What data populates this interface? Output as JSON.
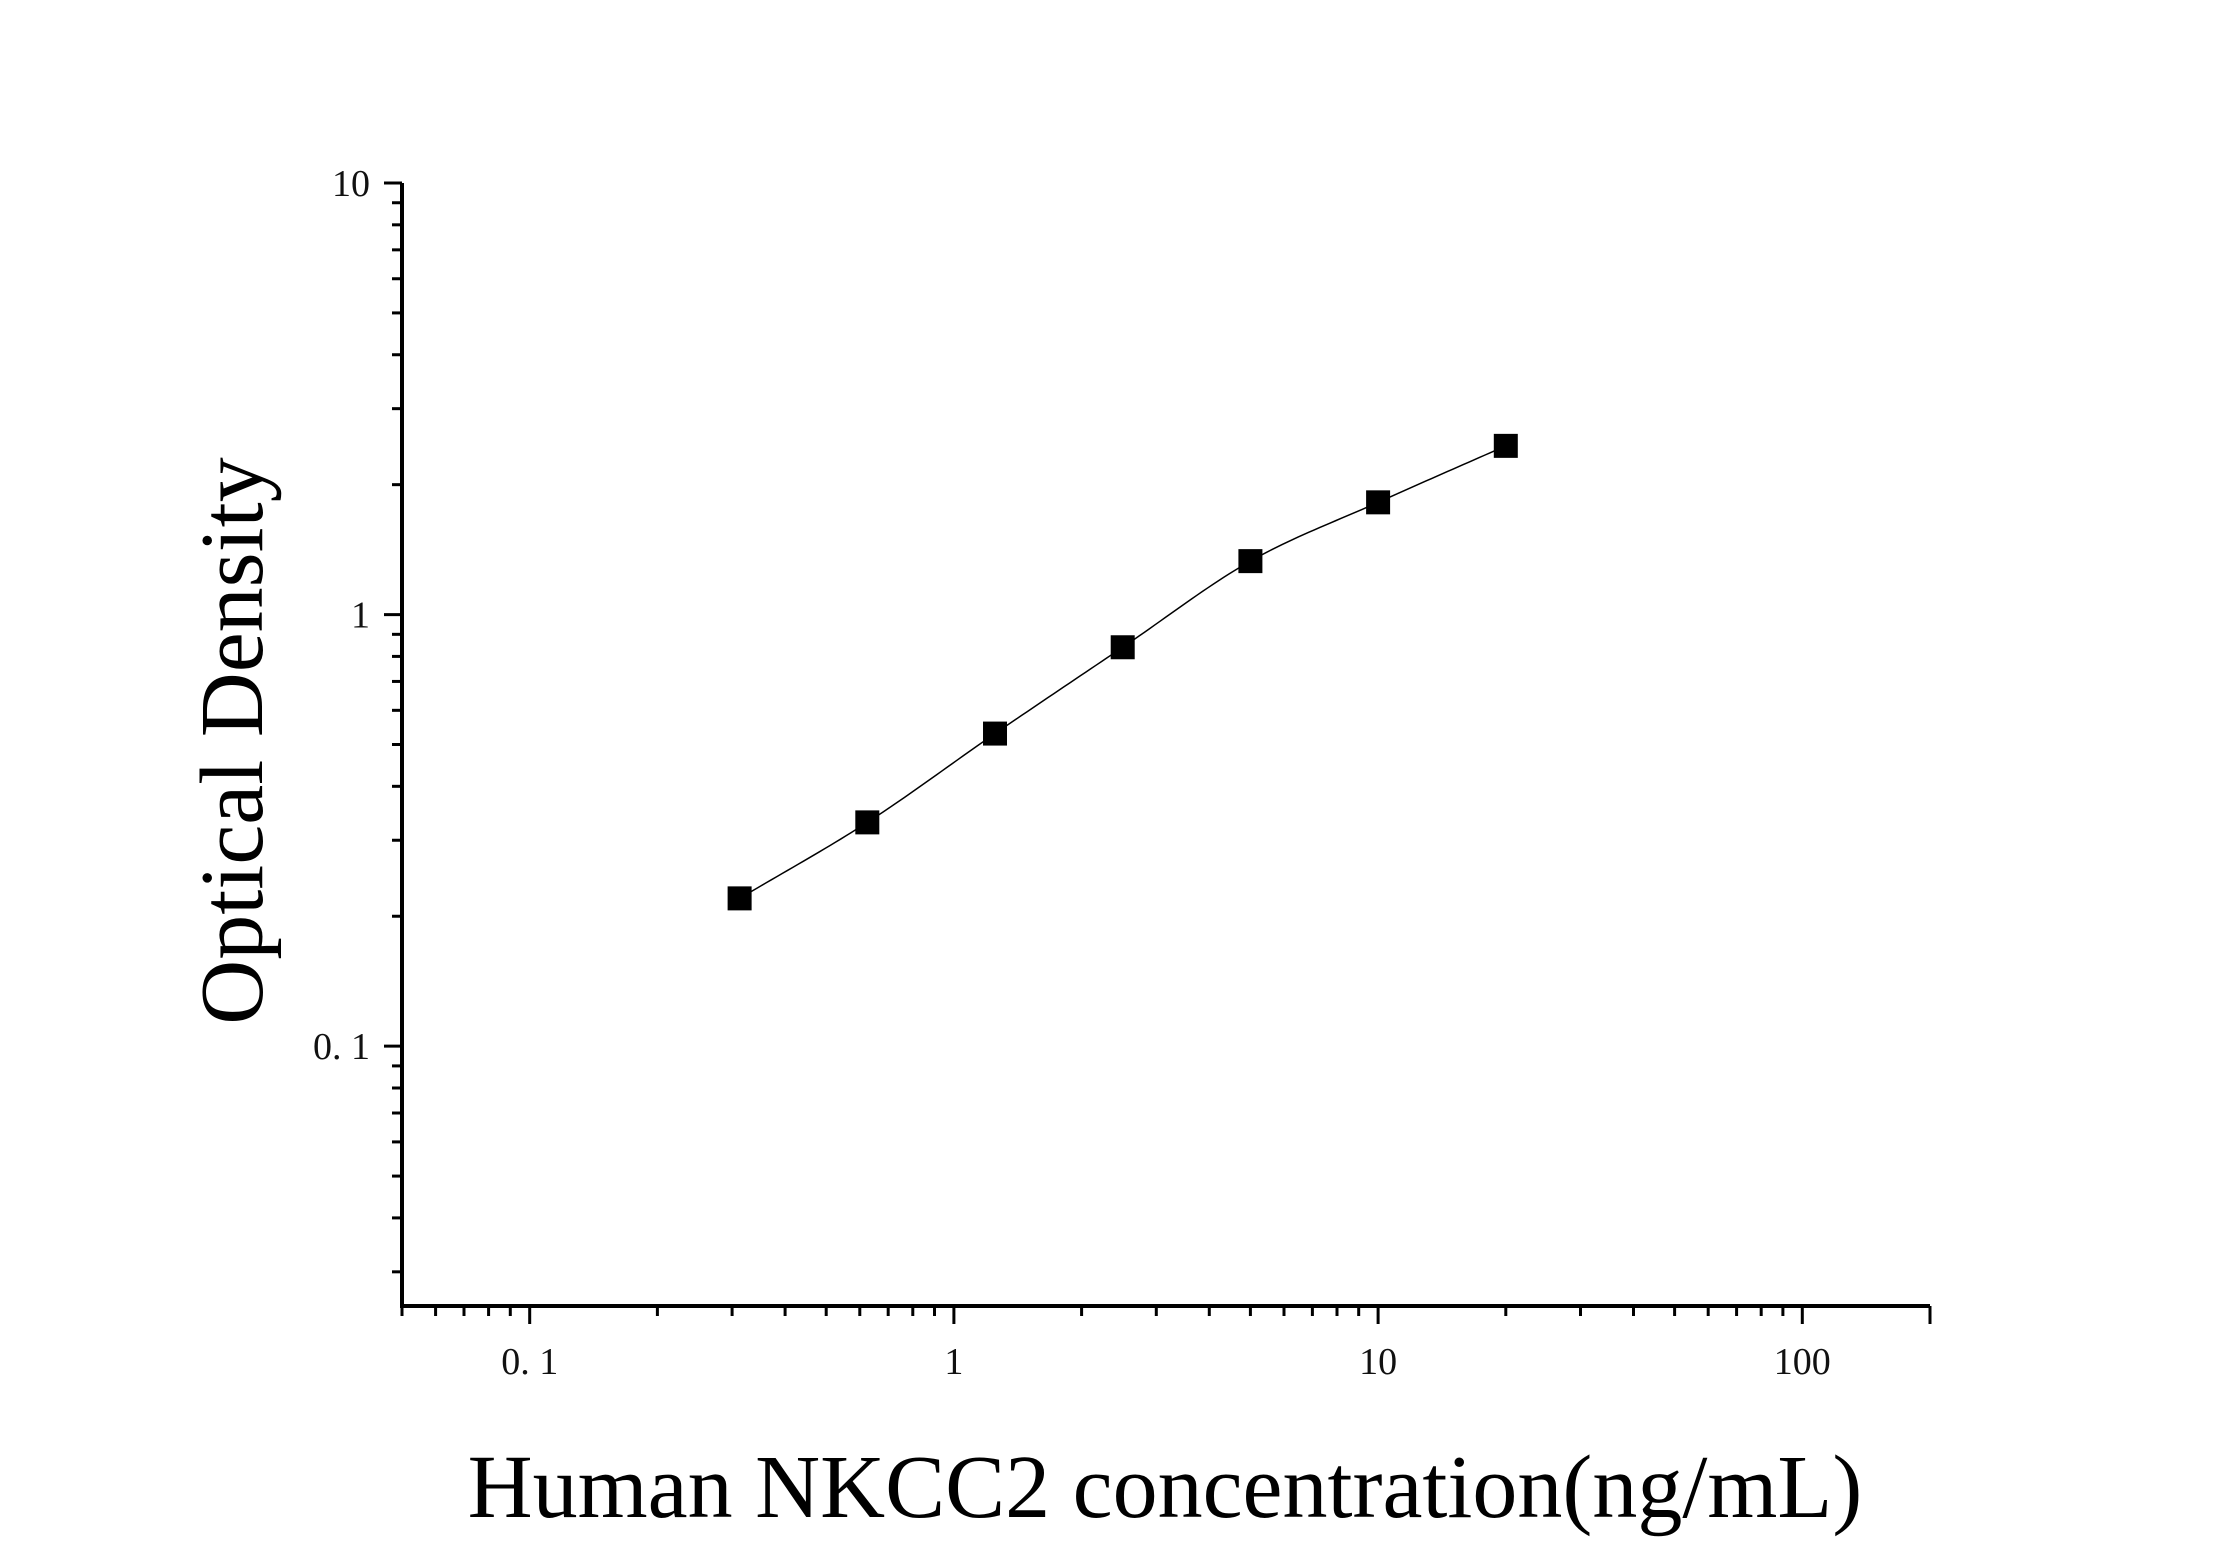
{
  "chart_data": {
    "type": "scatter",
    "title": "",
    "xlabel": "Human NKCC2 concentration(ng/mL)",
    "ylabel": "Optical Density",
    "x_scale": "log",
    "y_scale": "log",
    "xlim": [
      0.05,
      200
    ],
    "ylim": [
      0.025,
      10
    ],
    "x_tick_labels": [
      {
        "value": 0.1,
        "label": "0. 1"
      },
      {
        "value": 1,
        "label": "1"
      },
      {
        "value": 10,
        "label": "10"
      },
      {
        "value": 100,
        "label": "100"
      }
    ],
    "y_tick_labels": [
      {
        "value": 0.1,
        "label": "0. 1"
      },
      {
        "value": 1,
        "label": "1"
      },
      {
        "value": 10,
        "label": "10"
      }
    ],
    "grid": false,
    "legend": "none",
    "series": [
      {
        "marker": "square",
        "fit_line": true,
        "x": [
          0.3125,
          0.625,
          1.25,
          2.5,
          5,
          10,
          20
        ],
        "y": [
          0.22,
          0.33,
          0.53,
          0.84,
          1.33,
          1.82,
          2.46
        ]
      }
    ],
    "colors": {
      "marker": "#000000",
      "line": "#000000",
      "axis": "#000000"
    }
  }
}
